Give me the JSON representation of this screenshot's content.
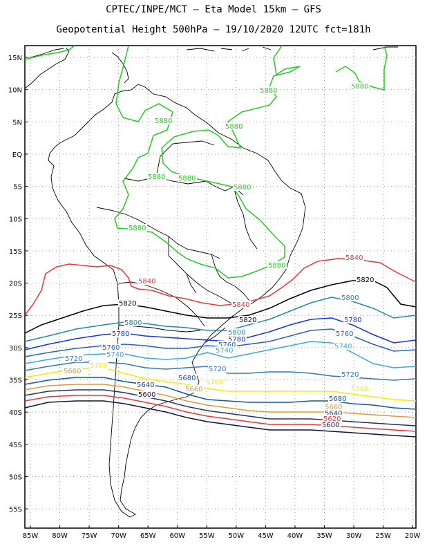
{
  "header": {
    "line1": "CPTEC/INPE/MCT –  Eta Model 15km – GFS",
    "line2": "Geopotential Height 500hPa – 19/10/2020 12UTC fct=181h"
  },
  "axes": {
    "lat_labels": [
      "15N",
      "10N",
      "5N",
      "EQ",
      "5S",
      "10S",
      "15S",
      "20S",
      "25S",
      "30S",
      "35S",
      "40S",
      "45S",
      "50S",
      "55S"
    ],
    "lon_labels": [
      "85W",
      "80W",
      "75W",
      "70W",
      "65W",
      "60W",
      "55W",
      "50W",
      "45W",
      "40W",
      "35W",
      "30W",
      "25W",
      "20W"
    ],
    "lat_range": [
      17,
      -58
    ],
    "lon_range": [
      -86,
      -20
    ],
    "grid": "dotted"
  },
  "contours": [
    {
      "value": 5880,
      "color": "#22cc22",
      "labels": [
        "5880",
        "5880",
        "5880",
        "5880",
        "5880",
        "5880",
        "5880",
        "5880",
        "5880"
      ]
    },
    {
      "value": 5840,
      "color": "#ee3333",
      "labels": [
        "5840",
        "5840",
        "5840"
      ]
    },
    {
      "value": 5820,
      "color": "#000000",
      "labels": [
        "5820",
        "5820",
        "5820"
      ]
    },
    {
      "value": 5800,
      "color": "#2288aa",
      "labels": [
        "5800",
        "5800",
        "5800"
      ]
    },
    {
      "value": 5780,
      "color": "#1133dd",
      "labels": [
        "5780",
        "5780",
        "5780"
      ]
    },
    {
      "value": 5760,
      "color": "#2266bb",
      "labels": [
        "5760",
        "5760",
        "5760"
      ]
    },
    {
      "value": 5740,
      "color": "#33aadd",
      "labels": [
        "5740",
        "5740",
        "5740"
      ]
    },
    {
      "value": 5720,
      "color": "#3377bb",
      "labels": [
        "5720",
        "5720",
        "5720"
      ]
    },
    {
      "value": 5700,
      "color": "#eeee00",
      "labels": [
        "5700",
        "5700",
        "5700"
      ]
    },
    {
      "value": 5680,
      "color": "#1155aa",
      "labels": [
        "5680",
        "5680"
      ]
    },
    {
      "value": 5660,
      "color": "#dd9933",
      "labels": [
        "5660",
        "5660",
        "5660"
      ]
    },
    {
      "value": 5640,
      "color": "#223366",
      "labels": [
        "5640",
        "5640"
      ]
    },
    {
      "value": 5620,
      "color": "#ee3333",
      "labels": [
        "5620"
      ]
    },
    {
      "value": 5600,
      "color": "#111144",
      "labels": [
        "5600",
        "5600"
      ]
    }
  ]
}
